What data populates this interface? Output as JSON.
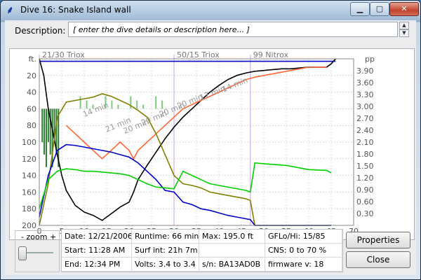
{
  "window": {
    "title": "Dive 16: Snake Island wall",
    "controls": [
      "minimize",
      "maximize",
      "close"
    ]
  },
  "description": {
    "label": "Description:",
    "value": "[ enter the dive details or description here... ]"
  },
  "chart_data": {
    "type": "line",
    "gas_labels": [
      "21/30 Triox",
      "50/15 Triox",
      "99 Nitrox"
    ],
    "gas_switch_times": [
      0,
      30,
      47
    ],
    "x_ticks": [
      0,
      5,
      10,
      15,
      20,
      25,
      30,
      35,
      40,
      45,
      50,
      55,
      60,
      65,
      70
    ],
    "xlim": [
      0,
      70
    ],
    "y_left_unit": "ft.",
    "y_left_ticks": [
      20,
      40,
      60,
      80,
      100,
      120,
      140,
      160,
      180,
      200
    ],
    "ylim_left": [
      0,
      200
    ],
    "y_right_unit": "pp",
    "y_right_ticks": [
      "3.90",
      "3.60",
      "3.30",
      "3.00",
      "2.70",
      "2.40",
      "2.10",
      "1.80",
      "1.50",
      "1.20",
      "0.90",
      "0.60",
      "0.30"
    ],
    "ylim_right": [
      0,
      4.2
    ],
    "stop_labels": [
      "14 min",
      "21 min",
      "20 min",
      "20 min",
      "20 min",
      "20 min",
      "17 min",
      "14 min"
    ],
    "series": [
      {
        "color": "#000000",
        "x": [
          0,
          1,
          2,
          4,
          5,
          6,
          8,
          10,
          12,
          14,
          16,
          18,
          20,
          21,
          22,
          24,
          26,
          28,
          30,
          32,
          34,
          36,
          38,
          40,
          42,
          44,
          46,
          48,
          50,
          52,
          54,
          56,
          58,
          60,
          62,
          64,
          65,
          66
        ],
        "y": [
          0,
          20,
          60,
          115,
          140,
          158,
          176,
          184,
          188,
          194,
          186,
          178,
          172,
          160,
          145,
          128,
          112,
          96,
          82,
          70,
          60,
          50,
          40,
          32,
          25,
          20,
          17,
          15,
          14,
          13,
          12,
          12,
          11,
          10,
          10,
          10,
          6,
          0
        ]
      },
      {
        "color": "#0000cc",
        "x": [
          0,
          1,
          2,
          4,
          6,
          8,
          10,
          12,
          14,
          16,
          18,
          20,
          21,
          22,
          24,
          26,
          28,
          30,
          31,
          35,
          40,
          45,
          47,
          48,
          55,
          60,
          65,
          66
        ],
        "y": [
          0,
          0,
          1,
          1,
          0,
          0,
          1,
          0,
          1,
          0,
          1,
          0,
          1,
          0,
          0,
          1,
          0,
          0,
          1,
          0,
          1,
          0,
          0,
          1,
          0,
          1,
          0,
          1
        ]
      },
      {
        "color": "#ff6633",
        "x": [
          6,
          8,
          10,
          12,
          14,
          16,
          18,
          20,
          21,
          22,
          24,
          26,
          28,
          30,
          32,
          34,
          36,
          38,
          40,
          42,
          44,
          46,
          48,
          50,
          52,
          54,
          56,
          58,
          60,
          62,
          64
        ],
        "y": [
          80,
          90,
          100,
          110,
          120,
          110,
          100,
          110,
          120,
          110,
          100,
          90,
          80,
          70,
          60,
          55,
          50,
          45,
          40,
          35,
          30,
          25,
          22,
          20,
          18,
          16,
          14,
          12,
          10,
          10,
          10
        ]
      }
    ]
  },
  "zoom": {
    "label_minus": "-",
    "label_zoom": "zoom",
    "label_plus": "+"
  },
  "info": {
    "date": "Date: 12/21/2006",
    "runtime": "Runtime: 66 min",
    "max": "Max: 195.0 ft",
    "gf": "GFLo/Hi: 15/85",
    "start": "Start: 11:28 AM",
    "surf": "Surf int: 21h 7m",
    "cns": "CNS: 0 to 70 %",
    "end": "End: 12:34 PM",
    "volts": "Volts: 3.4 to 3.4",
    "sn": "s/n: BA13AD0B",
    "firmware": "firmware v: 18"
  },
  "buttons": {
    "properties": "Properties",
    "close": "Close"
  }
}
